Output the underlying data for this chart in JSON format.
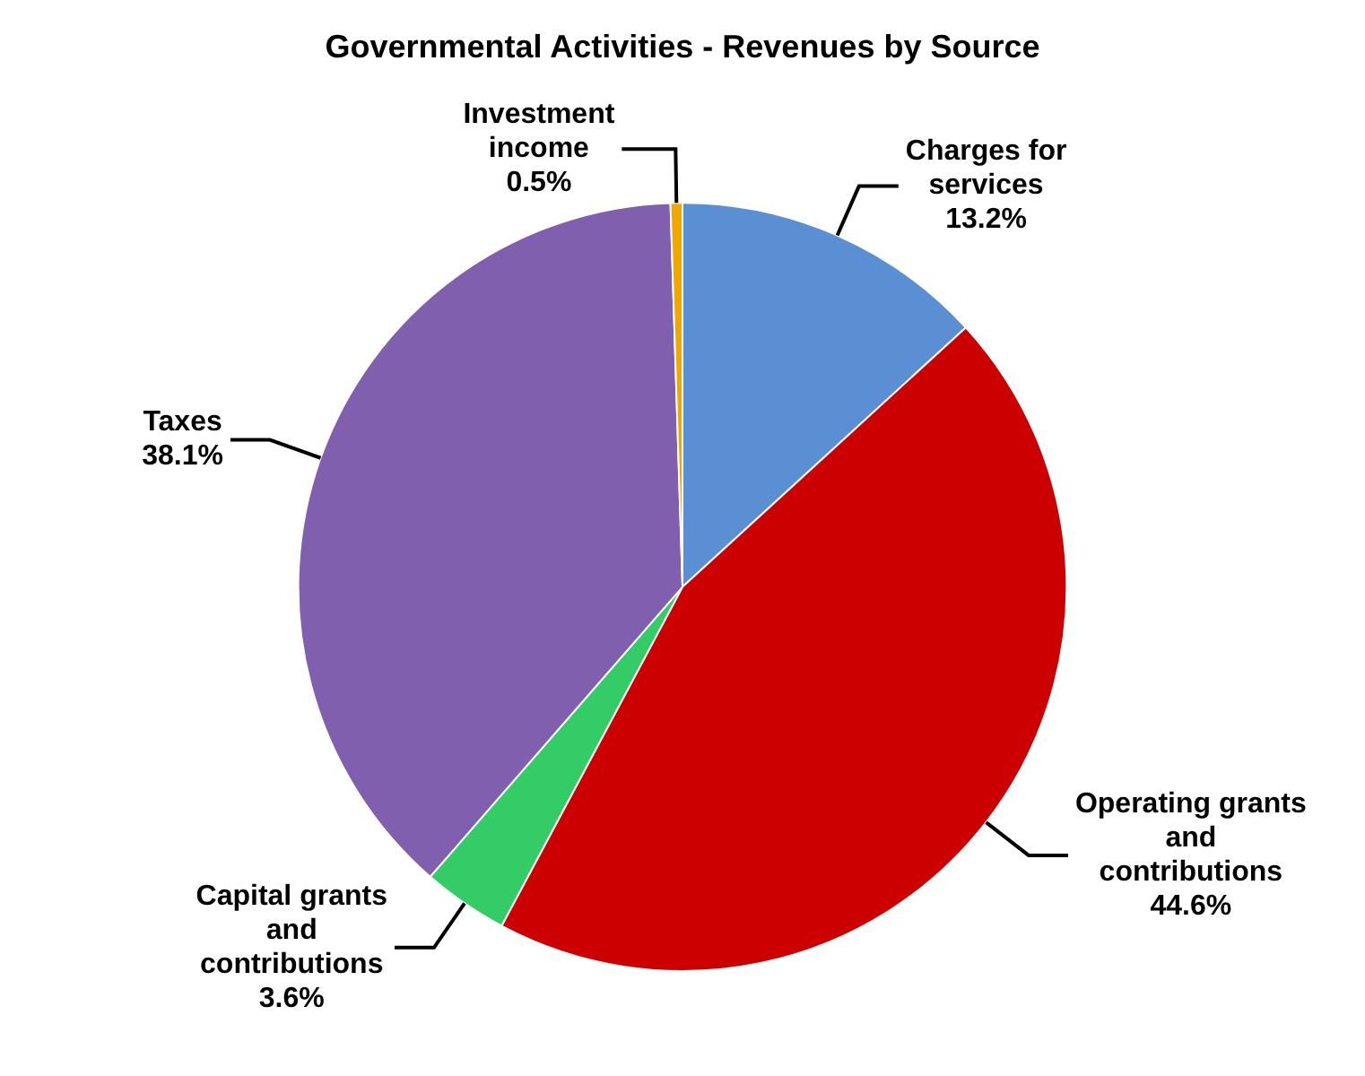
{
  "chart_data": {
    "type": "pie",
    "title": "Governmental Activities - Revenues by Source",
    "categories": [
      "Charges for services",
      "Operating grants and contributions",
      "Capital grants and contributions",
      "Taxes",
      "Investment income"
    ],
    "values": [
      13.2,
      44.6,
      3.6,
      38.1,
      0.5
    ],
    "colors": [
      "#5b8fd4",
      "#cc0000",
      "#33cc66",
      "#7f5fae",
      "#f0a800"
    ],
    "value_labels": [
      "13.2%",
      "44.6%",
      "3.6%",
      "38.1%",
      "0.5%"
    ],
    "legend": false
  }
}
